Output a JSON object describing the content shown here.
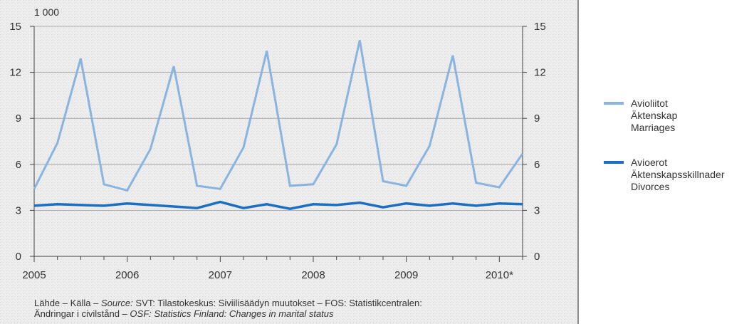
{
  "chart_data": {
    "type": "line",
    "unit_label": "1 000",
    "ylim": [
      0,
      15
    ],
    "y_ticks": [
      "0",
      "3",
      "6",
      "9",
      "12",
      "15"
    ],
    "x_ticks": [
      "2005",
      "2006",
      "2007",
      "2008",
      "2009",
      "2010*"
    ],
    "x_domain": [
      2005,
      2010.25
    ],
    "grid": true,
    "legend_placement": "right",
    "series": [
      {
        "name_lines": [
          "Avioliitot",
          "Äktenskap"
        ],
        "name_english": "Marriages",
        "color": "#8ab4e0",
        "x": [
          2005.0,
          2005.25,
          2005.5,
          2005.75,
          2006.0,
          2006.25,
          2006.5,
          2006.75,
          2007.0,
          2007.25,
          2007.5,
          2007.75,
          2008.0,
          2008.25,
          2008.5,
          2008.75,
          2009.0,
          2009.25,
          2009.5,
          2009.75,
          2010.0,
          2010.25
        ],
        "values": [
          4.4,
          7.4,
          12.9,
          4.7,
          4.3,
          7.0,
          12.4,
          4.6,
          4.4,
          7.1,
          13.4,
          4.6,
          4.7,
          7.3,
          14.1,
          4.9,
          4.6,
          7.2,
          13.1,
          4.8,
          4.5,
          6.7
        ]
      },
      {
        "name_lines": [
          "Avioerot",
          "Äktenskapsskillnader"
        ],
        "name_english": "Divorces",
        "color": "#1a6fc1",
        "x": [
          2005.0,
          2005.25,
          2005.5,
          2005.75,
          2006.0,
          2006.25,
          2006.5,
          2006.75,
          2007.0,
          2007.25,
          2007.5,
          2007.75,
          2008.0,
          2008.25,
          2008.5,
          2008.75,
          2009.0,
          2009.25,
          2009.5,
          2009.75,
          2010.0,
          2010.25
        ],
        "values": [
          3.3,
          3.4,
          3.35,
          3.3,
          3.45,
          3.35,
          3.25,
          3.15,
          3.55,
          3.15,
          3.4,
          3.1,
          3.4,
          3.35,
          3.5,
          3.2,
          3.45,
          3.3,
          3.45,
          3.3,
          3.45,
          3.4
        ]
      }
    ]
  },
  "source": {
    "line1_prefix": "Lähde – Källa – ",
    "line1_source_italic": "Source:",
    "line1_rest": " SVT: Tilastokeskus: Siviilisäädyn muutokset – FOS: Statistikcentralen:",
    "line2_text": "Ändringar i civilstånd – ",
    "line2_italic": "OSF: Statistics Finland: Changes in marital status"
  }
}
